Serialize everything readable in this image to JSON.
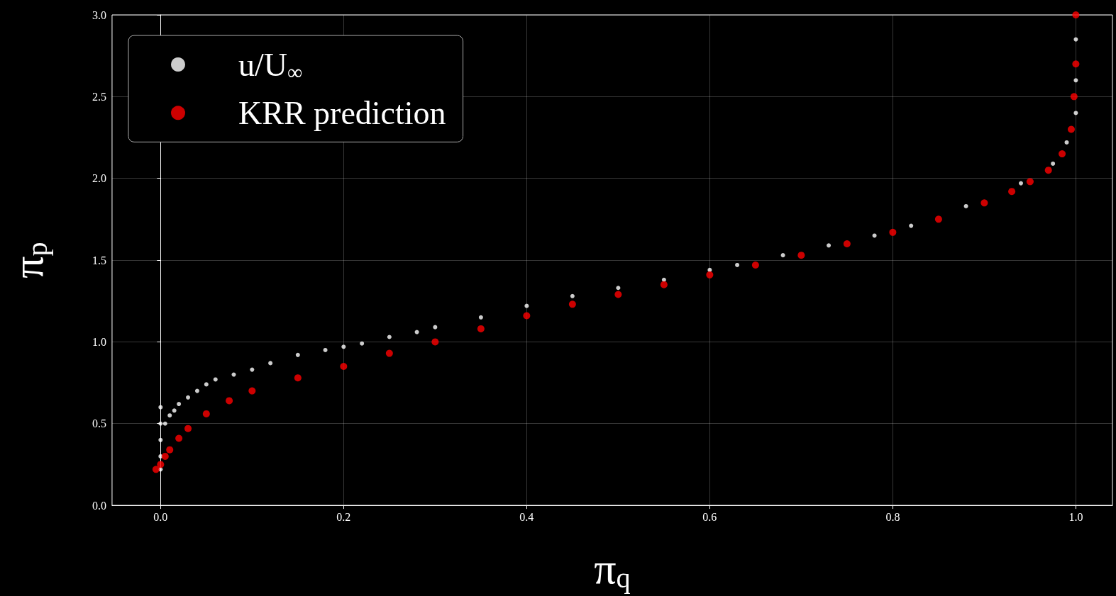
{
  "chart_data": {
    "type": "scatter",
    "xlabel": "π$_{q}$",
    "ylabel": "π$_{p}$",
    "xlim": [
      -0.053,
      1.04
    ],
    "ylim": [
      0,
      3
    ],
    "xticks": [
      {
        "value": 0,
        "label": "0.0"
      },
      {
        "value": 0.2,
        "label": "0.2"
      },
      {
        "value": 0.4,
        "label": "0.4"
      },
      {
        "value": 0.6,
        "label": "0.6"
      },
      {
        "value": 0.8,
        "label": "0.8"
      },
      {
        "value": 1,
        "label": "1.0"
      }
    ],
    "yticks": [
      {
        "value": 0,
        "label": "0.0"
      },
      {
        "value": 0.5,
        "label": "0.5"
      },
      {
        "value": 1,
        "label": "1.0"
      },
      {
        "value": 1.5,
        "label": "1.5"
      },
      {
        "value": 2,
        "label": "2.0"
      },
      {
        "value": 2.5,
        "label": "2.5"
      },
      {
        "value": 3,
        "label": "3.0"
      }
    ],
    "grid": true,
    "legend": "top left",
    "marker": "circle",
    "series": [
      {
        "name": "u/U$_{∞}$",
        "color": "#ffffff",
        "x": [
          0,
          0,
          0,
          0,
          0,
          0.005,
          0.01,
          0.015,
          0.02,
          0.03,
          0.04,
          0.05,
          0.06,
          0.08,
          0.1,
          0.12,
          0.15,
          0.18,
          0.2,
          0.22,
          0.25,
          0.28,
          0.3,
          0.35,
          0.4,
          0.45,
          0.5,
          0.55,
          0.6,
          0.63,
          0.68,
          0.73,
          0.78,
          0.82,
          0.88,
          0.94,
          0.975,
          0.99,
          1,
          1,
          1
        ],
        "values": [
          0.22,
          0.3,
          0.4,
          0.5,
          0.6,
          0.5,
          0.55,
          0.58,
          0.62,
          0.66,
          0.7,
          0.74,
          0.77,
          0.8,
          0.83,
          0.87,
          0.92,
          0.95,
          0.97,
          0.99,
          1.03,
          1.06,
          1.09,
          1.15,
          1.22,
          1.28,
          1.33,
          1.38,
          1.44,
          1.47,
          1.53,
          1.59,
          1.65,
          1.71,
          1.83,
          1.97,
          2.09,
          2.22,
          2.4,
          2.6,
          2.85
        ]
      },
      {
        "name": "KRR prediction",
        "color": "#ff0000",
        "x": [
          -0.005,
          0,
          0.005,
          0.01,
          0.02,
          0.03,
          0.05,
          0.075,
          0.1,
          0.15,
          0.2,
          0.25,
          0.3,
          0.35,
          0.4,
          0.45,
          0.5,
          0.55,
          0.6,
          0.65,
          0.7,
          0.75,
          0.8,
          0.85,
          0.9,
          0.93,
          0.95,
          0.97,
          0.985,
          0.995,
          0.998,
          1,
          1
        ],
        "values": [
          0.22,
          0.25,
          0.3,
          0.34,
          0.41,
          0.47,
          0.56,
          0.64,
          0.7,
          0.78,
          0.85,
          0.93,
          1.0,
          1.08,
          1.16,
          1.23,
          1.29,
          1.35,
          1.41,
          1.47,
          1.53,
          1.6,
          1.67,
          1.75,
          1.85,
          1.92,
          1.98,
          2.05,
          2.15,
          2.3,
          2.5,
          2.7,
          3.0
        ]
      }
    ]
  }
}
